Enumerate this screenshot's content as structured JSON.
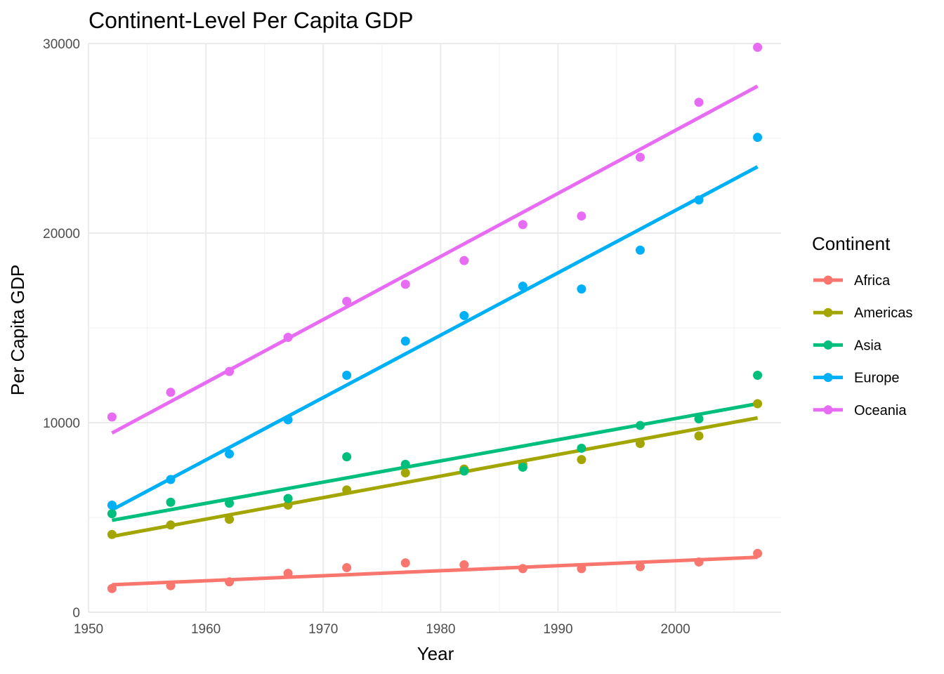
{
  "chart_data": {
    "type": "scatter",
    "title": "Continent-Level Per Capita GDP",
    "xlabel": "Year",
    "ylabel": "Per Capita GDP",
    "xlim": [
      1950,
      2009
    ],
    "ylim": [
      0,
      30000
    ],
    "x_ticks": [
      1950,
      1960,
      1970,
      1980,
      1990,
      2000
    ],
    "y_ticks": [
      0,
      10000,
      20000,
      30000
    ],
    "grid": true,
    "legend": {
      "title": "Continent",
      "placement": "right"
    },
    "trend_lines": "linear fit per series",
    "x": [
      1952,
      1957,
      1962,
      1967,
      1972,
      1977,
      1982,
      1987,
      1992,
      1997,
      2002,
      2007
    ],
    "series": [
      {
        "name": "Africa",
        "color": "#F8766D",
        "values": [
          1250,
          1400,
          1600,
          2050,
          2350,
          2600,
          2500,
          2300,
          2300,
          2400,
          2650,
          3100
        ],
        "fit": [
          1450,
          2900
        ]
      },
      {
        "name": "Americas",
        "color": "#A3A500",
        "values": [
          4100,
          4600,
          4900,
          5650,
          6450,
          7350,
          7550,
          7800,
          8050,
          8900,
          9300,
          11000
        ],
        "fit": [
          4000,
          10250
        ]
      },
      {
        "name": "Asia",
        "color": "#00BF7D",
        "values": [
          5200,
          5800,
          5750,
          6000,
          8200,
          7800,
          7450,
          7650,
          8650,
          9850,
          10200,
          12500
        ],
        "fit": [
          4850,
          11000
        ]
      },
      {
        "name": "Europe",
        "color": "#00B0F6",
        "values": [
          5650,
          7000,
          8350,
          10150,
          12500,
          14300,
          15650,
          17200,
          17050,
          19100,
          21750,
          25050
        ],
        "fit": [
          5400,
          23500
        ]
      },
      {
        "name": "Oceania",
        "color": "#E76BF3",
        "values": [
          10300,
          11600,
          12700,
          14500,
          16400,
          17300,
          18550,
          20450,
          20900,
          24000,
          26900,
          29800
        ],
        "fit": [
          9450,
          27750
        ]
      }
    ]
  }
}
